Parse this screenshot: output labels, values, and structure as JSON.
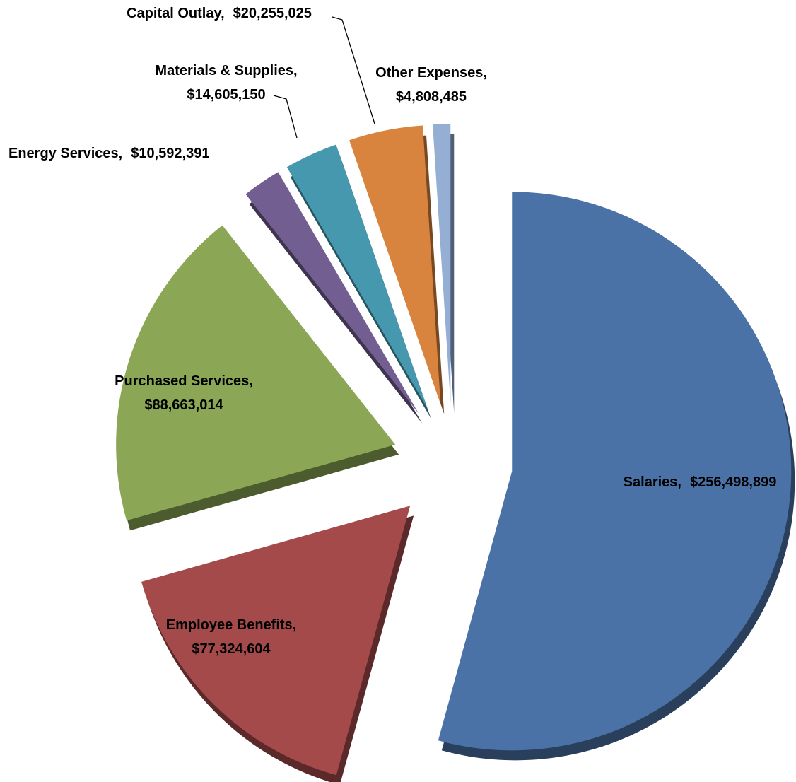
{
  "chart_data": {
    "type": "pie",
    "categories": [
      "Salaries,",
      "Employee Benefits,",
      "Purchased Services,",
      "Energy Services,",
      "Materials & Supplies,",
      "Capital Outlay,",
      "Other Expenses,"
    ],
    "values": [
      256498899,
      77324604,
      88663014,
      10592391,
      14605150,
      20255025,
      4808485
    ],
    "value_labels": [
      "$256,498,899",
      "$77,324,604",
      "$88,663,014",
      "$10,592,391",
      "$14,605,150",
      "$20,255,025",
      "$4,808,485"
    ],
    "colors": [
      "#4a72a6",
      "#a54a4a",
      "#8ba755",
      "#725e91",
      "#4598ae",
      "#d8843f",
      "#94aed4"
    ]
  }
}
